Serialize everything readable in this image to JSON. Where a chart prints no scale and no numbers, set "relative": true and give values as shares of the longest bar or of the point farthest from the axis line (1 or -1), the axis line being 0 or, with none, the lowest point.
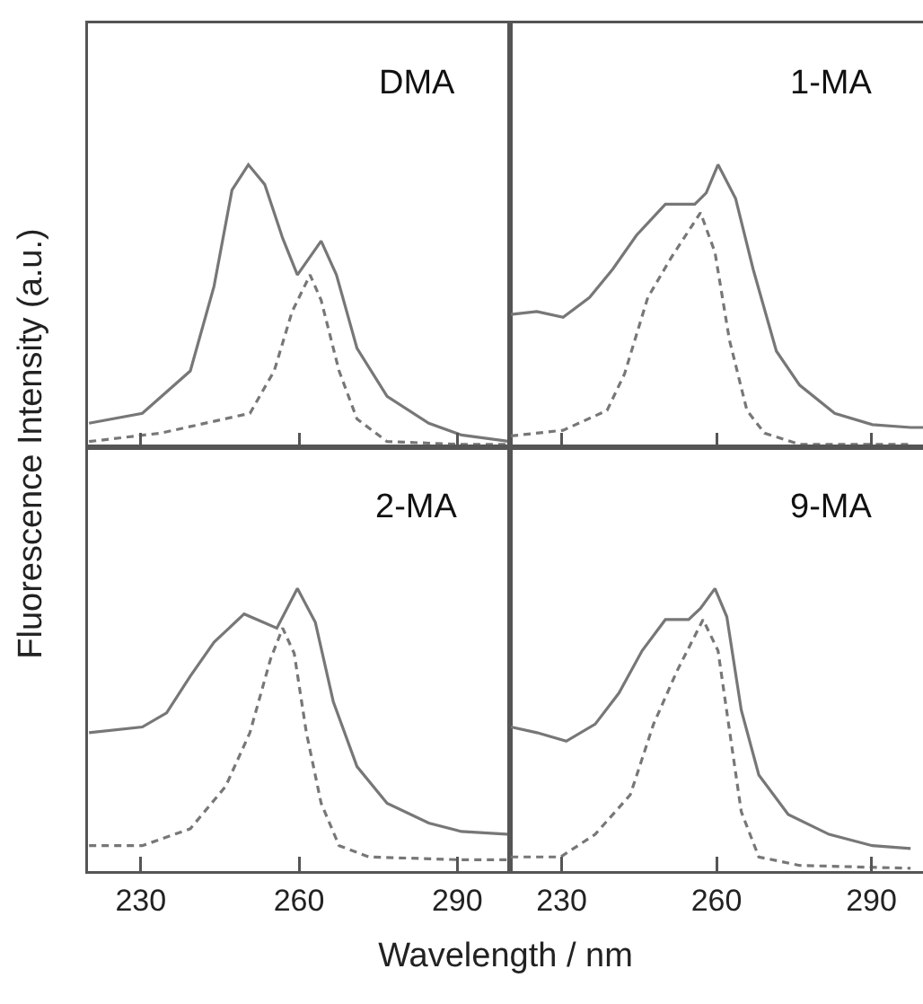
{
  "chart_data": [
    {
      "type": "line",
      "relative": true,
      "ylabel": "Fluorescence Intensity (a.u.)",
      "annotations": [
        "DMA"
      ],
      "xlim": [
        220,
        300
      ],
      "xticks": [
        230,
        260,
        290
      ],
      "tick_labels": false,
      "grid": false,
      "series": [
        {
          "color": "#777777",
          "line_style": "solid",
          "x": [
            220.2,
            230.3,
            239.4,
            243.9,
            247.3,
            250.4,
            253.5,
            256.9,
            259.7,
            264.2,
            267.1,
            271.0,
            276.7,
            284.6,
            290.8,
            300
          ],
          "values": [
            0.085,
            0.12,
            0.27,
            0.57,
            0.91,
            1.0,
            0.93,
            0.74,
            0.61,
            0.73,
            0.61,
            0.35,
            0.18,
            0.085,
            0.043,
            0.02
          ]
        },
        {
          "color": "#777777",
          "line_style": "dashed",
          "x": [
            220.2,
            233.8,
            250.7,
            255.3,
            258.7,
            262.1,
            264.2,
            267.6,
            271.0,
            276.7,
            290.8,
            300
          ],
          "values": [
            0.02,
            0.05,
            0.12,
            0.27,
            0.48,
            0.61,
            0.52,
            0.27,
            0.1,
            0.02,
            0.01,
            0.01
          ]
        }
      ]
    },
    {
      "type": "line",
      "relative": true,
      "annotations": [
        "1-MA"
      ],
      "xlim": [
        220,
        300
      ],
      "xticks": [
        230,
        260,
        290
      ],
      "tick_labels": false,
      "grid": false,
      "series": [
        {
          "color": "#777777",
          "line_style": "solid",
          "x": [
            220.2,
            225.2,
            230.3,
            235.4,
            239.9,
            244.5,
            250.1,
            255.8,
            258.0,
            260.3,
            263.7,
            267.1,
            271.6,
            276.1,
            282.9,
            290.2,
            297.6,
            300
          ],
          "values": [
            0.47,
            0.48,
            0.46,
            0.53,
            0.63,
            0.75,
            0.86,
            0.86,
            0.9,
            1.0,
            0.88,
            0.63,
            0.34,
            0.22,
            0.12,
            0.08,
            0.07,
            0.07
          ]
        },
        {
          "color": "#777777",
          "line_style": "dashed",
          "x": [
            220.2,
            230.3,
            238.8,
            242.2,
            246.7,
            251.2,
            256.9,
            259.7,
            262.5,
            265.9,
            269.3,
            276.1,
            297.6
          ],
          "values": [
            0.04,
            0.06,
            0.13,
            0.26,
            0.53,
            0.67,
            0.83,
            0.69,
            0.38,
            0.13,
            0.05,
            0.01,
            0.01
          ]
        }
      ]
    },
    {
      "type": "line",
      "relative": true,
      "xlabel": "Wavelength / nm",
      "annotations": [
        "2-MA"
      ],
      "xlim": [
        220,
        300
      ],
      "xticks": [
        230,
        260,
        290
      ],
      "tick_labels": "x",
      "grid": false,
      "series": [
        {
          "color": "#777777",
          "line_style": "solid",
          "x": [
            220.2,
            230.3,
            234.9,
            239.4,
            243.9,
            249.6,
            255.8,
            259.7,
            263.1,
            266.5,
            271.0,
            276.7,
            284.6,
            290.8,
            300
          ],
          "values": [
            0.49,
            0.51,
            0.56,
            0.69,
            0.81,
            0.91,
            0.86,
            1.0,
            0.88,
            0.6,
            0.37,
            0.24,
            0.17,
            0.14,
            0.13
          ]
        },
        {
          "color": "#777777",
          "line_style": "dashed",
          "x": [
            220.2,
            230.3,
            239.4,
            246.1,
            250.7,
            254.6,
            256.9,
            259.1,
            261.4,
            264.2,
            267.6,
            273.3,
            290.8,
            300
          ],
          "values": [
            0.09,
            0.09,
            0.15,
            0.3,
            0.49,
            0.75,
            0.86,
            0.77,
            0.49,
            0.24,
            0.09,
            0.05,
            0.04,
            0.04
          ]
        }
      ]
    },
    {
      "type": "line",
      "relative": true,
      "annotations": [
        "9-MA"
      ],
      "xlim": [
        220,
        300
      ],
      "xticks": [
        230,
        260,
        290
      ],
      "tick_labels": "x",
      "grid": false,
      "series": [
        {
          "color": "#777777",
          "line_style": "solid",
          "x": [
            220.2,
            225.2,
            230.9,
            236.5,
            241.1,
            245.6,
            250.1,
            254.6,
            256.9,
            259.7,
            262.0,
            264.8,
            268.2,
            273.9,
            281.8,
            290.2,
            297.6
          ],
          "values": [
            0.51,
            0.49,
            0.46,
            0.52,
            0.63,
            0.78,
            0.89,
            0.89,
            0.93,
            1.0,
            0.9,
            0.57,
            0.34,
            0.2,
            0.13,
            0.09,
            0.08
          ]
        },
        {
          "color": "#777777",
          "line_style": "dashed",
          "x": [
            220.2,
            229.8,
            236.5,
            243.3,
            247.8,
            252.4,
            257.4,
            260.3,
            262.5,
            264.8,
            268.2,
            276.1,
            297.6
          ],
          "values": [
            0.05,
            0.05,
            0.13,
            0.27,
            0.52,
            0.71,
            0.89,
            0.78,
            0.5,
            0.21,
            0.05,
            0.02,
            0.01
          ]
        }
      ]
    }
  ]
}
